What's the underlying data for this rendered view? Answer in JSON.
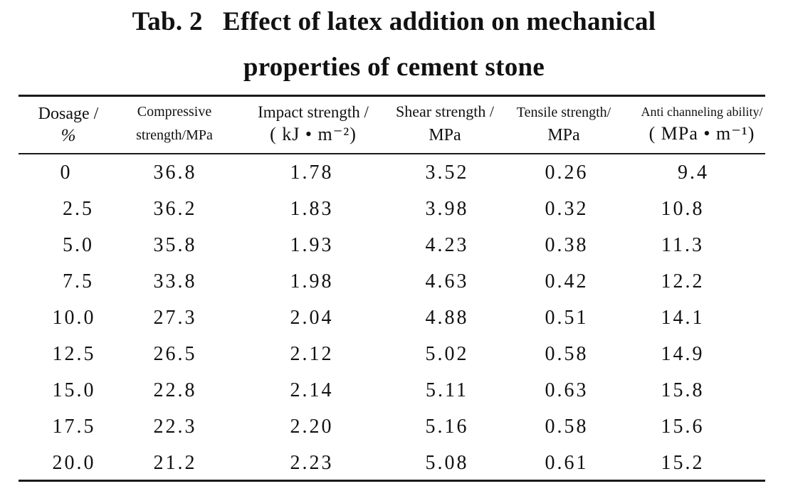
{
  "table": {
    "title_prefix": "Tab. 2",
    "title_line1": "Effect of latex addition on mechanical",
    "title_line2": "properties of cement stone",
    "headers": {
      "dosage": {
        "line1": "Dosage /",
        "line2": "%"
      },
      "compressive": {
        "line1": "Compressive",
        "line2": "strength/MPa"
      },
      "impact": {
        "line1": "Impact strength /",
        "line2": "( kJ • m⁻²)"
      },
      "shear": {
        "line1": "Shear strength /",
        "line2": "MPa"
      },
      "tensile": {
        "line1": "Tensile strength/",
        "line2": "MPa"
      },
      "anti_channeling": {
        "line1": "Anti channeling ability/",
        "line2": "( MPa • m⁻¹)"
      }
    },
    "rows": [
      [
        "0",
        "36.8",
        "1.78",
        "3.52",
        "0.26",
        "9.4"
      ],
      [
        "2.5",
        "36.2",
        "1.83",
        "3.98",
        "0.32",
        "10.8"
      ],
      [
        "5.0",
        "35.8",
        "1.93",
        "4.23",
        "0.38",
        "11.3"
      ],
      [
        "7.5",
        "33.8",
        "1.98",
        "4.63",
        "0.42",
        "12.2"
      ],
      [
        "10.0",
        "27.3",
        "2.04",
        "4.88",
        "0.51",
        "14.1"
      ],
      [
        "12.5",
        "26.5",
        "2.12",
        "5.02",
        "0.58",
        "14.9"
      ],
      [
        "15.0",
        "22.8",
        "2.14",
        "5.11",
        "0.63",
        "15.8"
      ],
      [
        "17.5",
        "22.3",
        "2.20",
        "5.16",
        "0.58",
        "15.6"
      ],
      [
        "20.0",
        "21.2",
        "2.23",
        "5.08",
        "0.61",
        "15.2"
      ]
    ]
  }
}
